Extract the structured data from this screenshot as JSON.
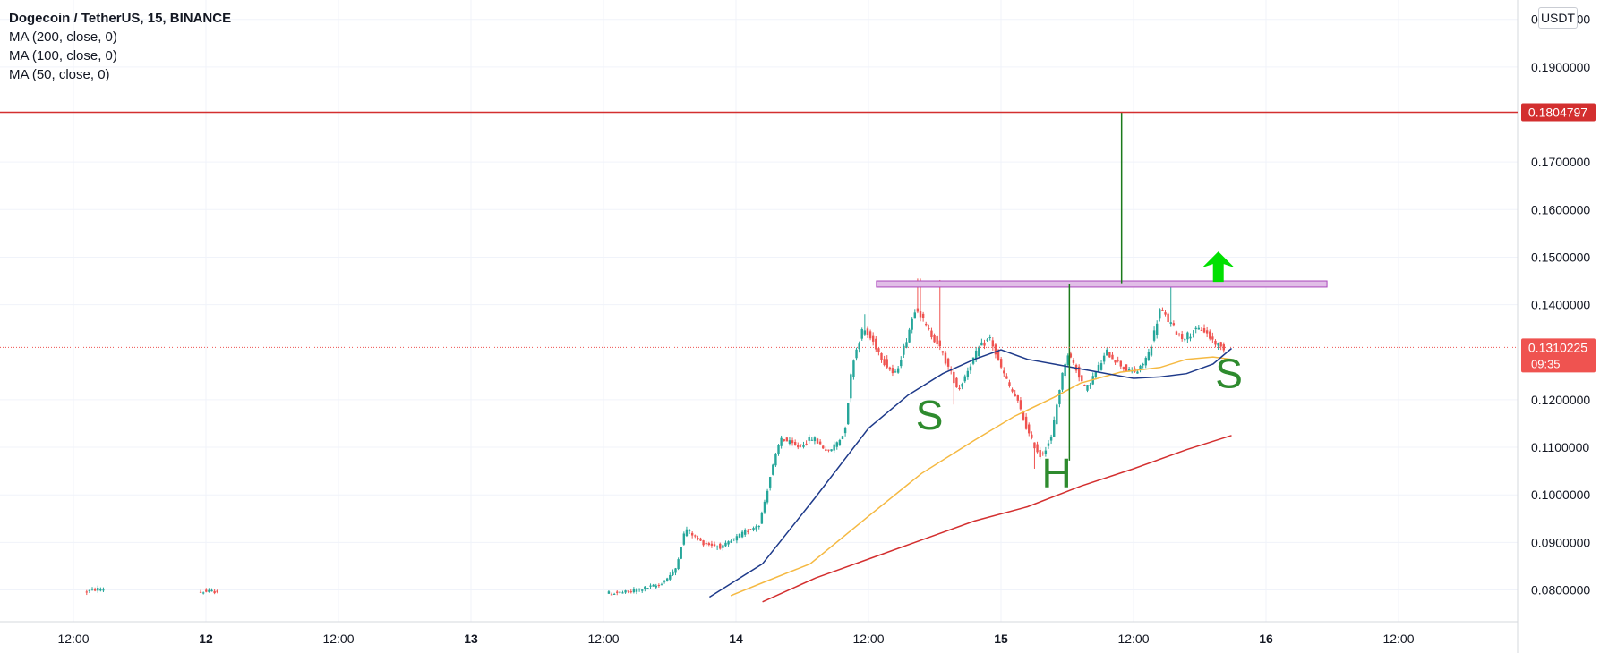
{
  "chart_data": {
    "type": "candlestick",
    "title": "Dogecoin / TetherUS, 15, BINANCE",
    "indicators": [
      "MA (200, close, 0)",
      "MA (100, close, 0)",
      "MA (50, close, 0)"
    ],
    "unit": "USDT",
    "ylim": [
      0.076,
      0.2125
    ],
    "y_ticks": [
      "0.2000000",
      "0.1900000",
      "0.1700000",
      "0.1600000",
      "0.1500000",
      "0.1400000",
      "0.1200000",
      "0.1100000",
      "0.1000000",
      "0.0900000",
      "0.0800000"
    ],
    "x_ticks": [
      {
        "label": "12:00",
        "t": 0.0,
        "bold": false
      },
      {
        "label": "12",
        "t": 0.5,
        "bold": true
      },
      {
        "label": "12:00",
        "t": 1.0,
        "bold": false
      },
      {
        "label": "13",
        "t": 1.5,
        "bold": true
      },
      {
        "label": "12:00",
        "t": 2.0,
        "bold": false
      },
      {
        "label": "14",
        "t": 2.5,
        "bold": true
      },
      {
        "label": "12:00",
        "t": 3.0,
        "bold": false
      },
      {
        "label": "15",
        "t": 3.5,
        "bold": true
      },
      {
        "label": "12:00",
        "t": 4.0,
        "bold": false
      },
      {
        "label": "16",
        "t": 4.5,
        "bold": true
      },
      {
        "label": "12:00",
        "t": 5.0,
        "bold": false
      }
    ],
    "price_path": [
      [
        0.05,
        0.0795
      ],
      [
        0.1,
        0.0802
      ],
      [
        0.5,
        0.0796
      ],
      [
        0.6,
        0.0798
      ],
      [
        1.5,
        0.079
      ],
      [
        2.0,
        0.0792
      ],
      [
        2.1,
        0.0795
      ],
      [
        2.15,
        0.0802
      ],
      [
        2.22,
        0.081
      ],
      [
        2.28,
        0.084
      ],
      [
        2.32,
        0.093
      ],
      [
        2.38,
        0.09
      ],
      [
        2.46,
        0.089
      ],
      [
        2.54,
        0.092
      ],
      [
        2.6,
        0.094
      ],
      [
        2.64,
        0.104
      ],
      [
        2.68,
        0.112
      ],
      [
        2.74,
        0.11
      ],
      [
        2.8,
        0.112
      ],
      [
        2.86,
        0.109
      ],
      [
        2.92,
        0.113
      ],
      [
        2.95,
        0.128
      ],
      [
        2.99,
        0.135
      ],
      [
        3.03,
        0.132
      ],
      [
        3.07,
        0.128
      ],
      [
        3.11,
        0.125
      ],
      [
        3.15,
        0.132
      ],
      [
        3.19,
        0.14
      ],
      [
        3.23,
        0.135
      ],
      [
        3.27,
        0.132
      ],
      [
        3.31,
        0.127
      ],
      [
        3.35,
        0.122
      ],
      [
        3.39,
        0.127
      ],
      [
        3.43,
        0.131
      ],
      [
        3.47,
        0.133
      ],
      [
        3.5,
        0.128
      ],
      [
        3.54,
        0.123
      ],
      [
        3.57,
        0.12
      ],
      [
        3.62,
        0.112
      ],
      [
        3.66,
        0.108
      ],
      [
        3.7,
        0.112
      ],
      [
        3.73,
        0.122
      ],
      [
        3.76,
        0.13
      ],
      [
        3.79,
        0.127
      ],
      [
        3.83,
        0.122
      ],
      [
        3.87,
        0.126
      ],
      [
        3.91,
        0.13
      ],
      [
        3.95,
        0.128
      ],
      [
        3.99,
        0.126
      ],
      [
        4.03,
        0.126
      ],
      [
        4.07,
        0.13
      ],
      [
        4.11,
        0.139
      ],
      [
        4.15,
        0.136
      ],
      [
        4.19,
        0.133
      ],
      [
        4.23,
        0.134
      ],
      [
        4.27,
        0.135
      ],
      [
        4.3,
        0.133
      ],
      [
        4.34,
        0.131
      ]
    ],
    "wick_events": [
      [
        3.19,
        0.1455
      ],
      [
        3.27,
        0.1452
      ],
      [
        4.14,
        0.1445
      ],
      [
        3.63,
        0.1055
      ],
      [
        3.32,
        0.119
      ],
      [
        2.99,
        0.138
      ]
    ],
    "ma50": [
      [
        2.4,
        0.0785
      ],
      [
        2.6,
        0.0855
      ],
      [
        2.8,
        0.0995
      ],
      [
        3.0,
        0.114
      ],
      [
        3.15,
        0.121
      ],
      [
        3.28,
        0.1255
      ],
      [
        3.4,
        0.1285
      ],
      [
        3.5,
        0.1305
      ],
      [
        3.6,
        0.1285
      ],
      [
        3.7,
        0.1275
      ],
      [
        3.8,
        0.1265
      ],
      [
        3.9,
        0.1255
      ],
      [
        4.0,
        0.1245
      ],
      [
        4.1,
        0.1248
      ],
      [
        4.2,
        0.1255
      ],
      [
        4.3,
        0.1275
      ],
      [
        4.37,
        0.1308
      ]
    ],
    "ma100": [
      [
        2.48,
        0.0788
      ],
      [
        2.6,
        0.0815
      ],
      [
        2.78,
        0.0855
      ],
      [
        3.0,
        0.0955
      ],
      [
        3.2,
        0.1045
      ],
      [
        3.4,
        0.1115
      ],
      [
        3.55,
        0.1165
      ],
      [
        3.7,
        0.1205
      ],
      [
        3.8,
        0.1235
      ],
      [
        3.95,
        0.1258
      ],
      [
        4.1,
        0.1268
      ],
      [
        4.2,
        0.1285
      ],
      [
        4.3,
        0.129
      ],
      [
        4.37,
        0.1285
      ]
    ],
    "ma200": [
      [
        2.6,
        0.0775
      ],
      [
        2.8,
        0.0825
      ],
      [
        3.0,
        0.0865
      ],
      [
        3.2,
        0.0905
      ],
      [
        3.4,
        0.0945
      ],
      [
        3.6,
        0.0975
      ],
      [
        3.8,
        0.1018
      ],
      [
        4.0,
        0.1055
      ],
      [
        4.2,
        0.1095
      ],
      [
        4.37,
        0.1125
      ]
    ],
    "resistance_line": {
      "price": 0.1804797,
      "label": "0.1804797",
      "color": "#d32f2f"
    },
    "current_price": {
      "price": 0.1310225,
      "label": "0.1310225",
      "countdown": "09:35",
      "color": "#ef5350"
    },
    "neckline_box": {
      "t0": 3.03,
      "t1": 4.73,
      "y0": 0.1437,
      "y1": 0.145,
      "fill": "#e1bee7",
      "stroke": "#ab47bc"
    },
    "measure_lines": [
      {
        "t": 3.955,
        "y0": 0.1445,
        "y1": 0.1804797
      },
      {
        "t": 3.758,
        "y0": 0.1072,
        "y1": 0.1444
      }
    ],
    "arrow": {
      "t": 4.32,
      "y_base": 0.1448,
      "y_tip": 0.1512,
      "color": "#00e000"
    },
    "annotations": [
      {
        "text": "S",
        "t": 3.23,
        "y": 0.1138,
        "color": "#2e8b2e"
      },
      {
        "text": "H",
        "t": 3.71,
        "y": 0.1015,
        "color": "#2e8b2e"
      },
      {
        "text": "S",
        "t": 4.36,
        "y": 0.1225,
        "color": "#2e8b2e"
      }
    ],
    "candle_up_color": "#26a69a",
    "candle_down_color": "#ef5350"
  }
}
